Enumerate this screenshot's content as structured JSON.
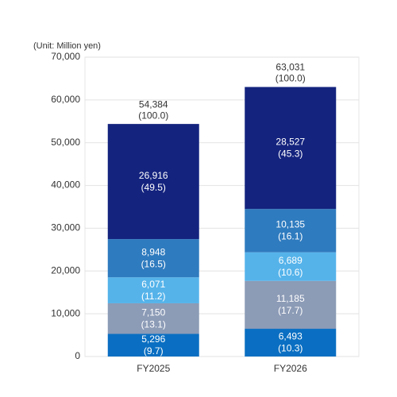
{
  "chart_data": {
    "type": "stacked_bar",
    "unit_label": "(Unit: Million yen)",
    "categories": [
      "FY2025",
      "FY2026"
    ],
    "series": [
      {
        "color": "#0a6fc2",
        "values": [
          5296,
          6493
        ],
        "value_labels": [
          "5,296",
          "6,493"
        ],
        "percents": [
          9.7,
          10.3
        ],
        "percent_labels": [
          "(9.7)",
          "(10.3)"
        ]
      },
      {
        "color": "#8c9bb6",
        "values": [
          7150,
          11185
        ],
        "value_labels": [
          "7,150",
          "11,185"
        ],
        "percents": [
          13.1,
          17.7
        ],
        "percent_labels": [
          "(13.1)",
          "(17.7)"
        ]
      },
      {
        "color": "#55b3ea",
        "values": [
          6071,
          6689
        ],
        "value_labels": [
          "6,071",
          "6,689"
        ],
        "percents": [
          11.2,
          10.6
        ],
        "percent_labels": [
          "(11.2)",
          "(10.6)"
        ]
      },
      {
        "color": "#2f7bbf",
        "values": [
          8948,
          10135
        ],
        "value_labels": [
          "8,948",
          "10,135"
        ],
        "percents": [
          16.5,
          16.1
        ],
        "percent_labels": [
          "(16.5)",
          "(16.1)"
        ]
      },
      {
        "color": "#14237e",
        "values": [
          26916,
          28527
        ],
        "value_labels": [
          "26,916",
          "28,527"
        ],
        "percents": [
          49.5,
          45.3
        ],
        "percent_labels": [
          "(49.5)",
          "(45.3)"
        ]
      }
    ],
    "totals": [
      54384,
      63031
    ],
    "total_labels": [
      "54,384",
      "63,031"
    ],
    "total_percents": [
      100.0,
      100.0
    ],
    "total_percent_labels": [
      "(100.0)",
      "(100.0)"
    ],
    "ylim": [
      0,
      70000
    ],
    "yticks": [
      0,
      {
        "value": 10000,
        "label": "10,000"
      },
      {
        "value": 20000,
        "label": "20,000"
      },
      {
        "value": 30000,
        "label": "30,000"
      },
      {
        "value": 40000,
        "label": "40,000"
      },
      {
        "value": 50000,
        "label": "50,000"
      },
      {
        "value": 60000,
        "label": "60,000"
      },
      {
        "value": 70000,
        "label": "70,000"
      }
    ],
    "grid": true
  }
}
